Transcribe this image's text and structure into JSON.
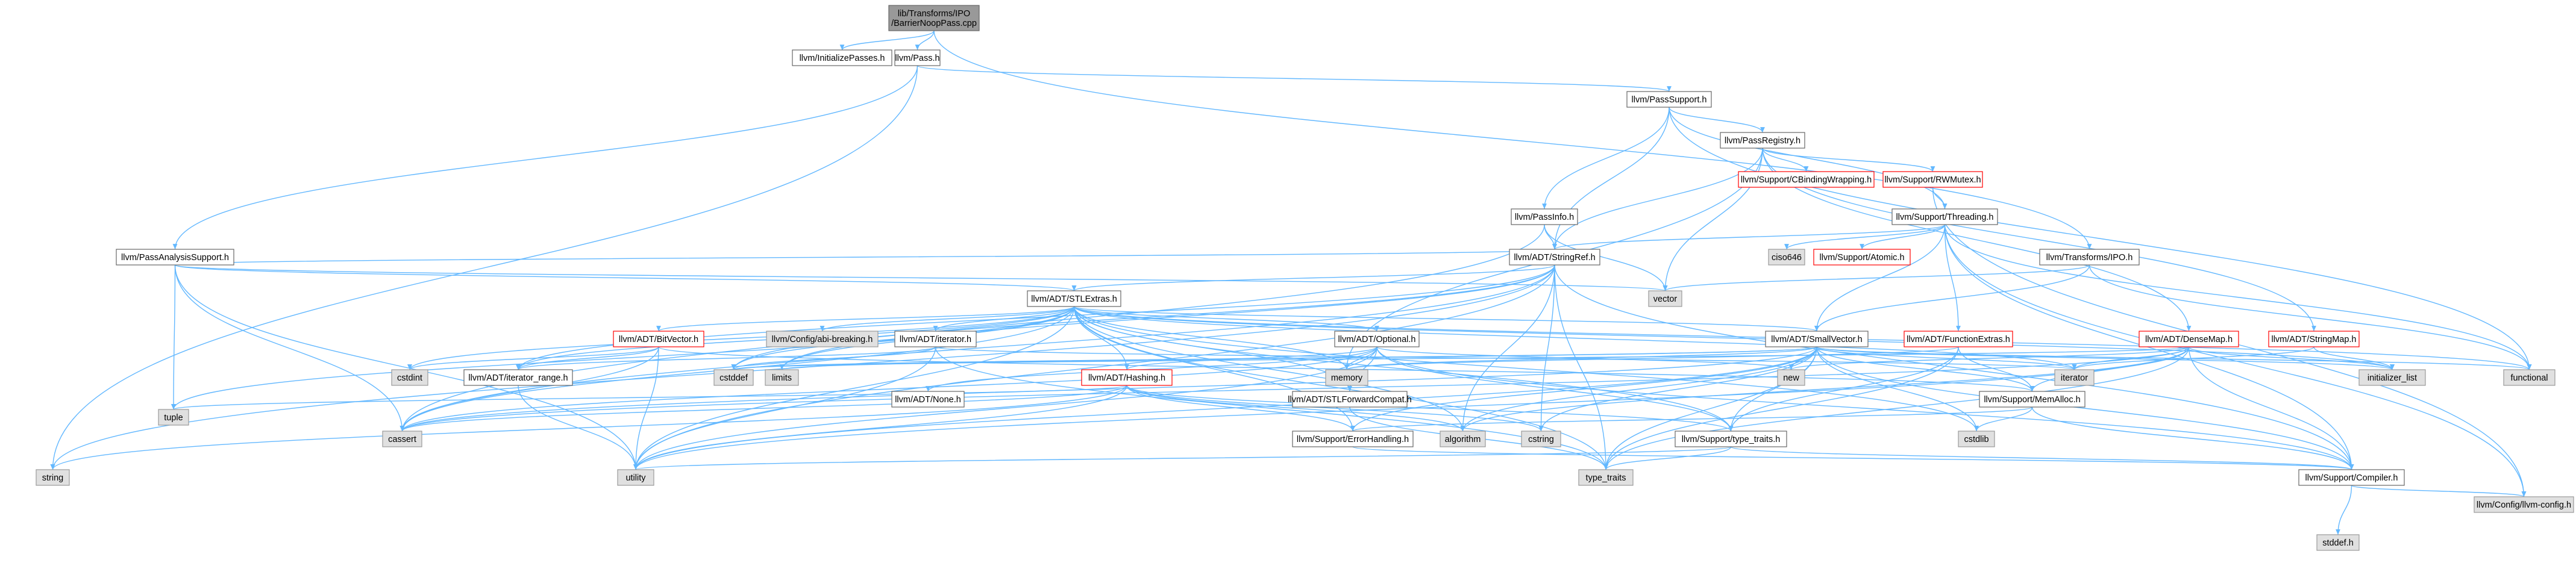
{
  "colors": {
    "edge": "#63b8ff",
    "node_fill": "#ffffff",
    "node_border": "#666666",
    "root_fill": "#999999",
    "root_border": "#666666",
    "missing_fill": "#e0e0e0",
    "missing_border": "#999999",
    "incomplete_border": "#ff0000"
  },
  "nodes": {
    "root": {
      "label": "lib/Transforms/IPO\n/BarrierNoopPass.cpp",
      "kind": "root"
    },
    "initpasses": {
      "label": "llvm/InitializePasses.h",
      "kind": "normal"
    },
    "pass": {
      "label": "llvm/Pass.h",
      "kind": "normal"
    },
    "passsupport": {
      "label": "llvm/PassSupport.h",
      "kind": "normal"
    },
    "passanalysis": {
      "label": "llvm/PassAnalysisSupport.h",
      "kind": "normal"
    },
    "passregistry": {
      "label": "llvm/PassRegistry.h",
      "kind": "normal"
    },
    "passinfo": {
      "label": "llvm/PassInfo.h",
      "kind": "normal"
    },
    "cbinding": {
      "label": "llvm/Support/CBindingWrapping.h",
      "kind": "incomplete"
    },
    "rwmutex": {
      "label": "llvm/Support/RWMutex.h",
      "kind": "incomplete"
    },
    "threading": {
      "label": "llvm/Support/Threading.h",
      "kind": "normal"
    },
    "stringref": {
      "label": "llvm/ADT/StringRef.h",
      "kind": "normal"
    },
    "transformsipo": {
      "label": "llvm/Transforms/IPO.h",
      "kind": "normal"
    },
    "ciso646": {
      "label": "ciso646",
      "kind": "missing"
    },
    "atomic": {
      "label": "llvm/Support/Atomic.h",
      "kind": "incomplete"
    },
    "vector": {
      "label": "vector",
      "kind": "missing"
    },
    "stlextras": {
      "label": "llvm/ADT/STLExtras.h",
      "kind": "normal"
    },
    "abibreaking": {
      "label": "llvm/Config/abi-breaking.h",
      "kind": "missing"
    },
    "bitvector": {
      "label": "llvm/ADT/BitVector.h",
      "kind": "incomplete"
    },
    "adtiterator": {
      "label": "llvm/ADT/iterator.h",
      "kind": "normal"
    },
    "optional": {
      "label": "llvm/ADT/Optional.h",
      "kind": "normal"
    },
    "smallvector": {
      "label": "llvm/ADT/SmallVector.h",
      "kind": "normal"
    },
    "functionextras": {
      "label": "llvm/ADT/FunctionExtras.h",
      "kind": "incomplete"
    },
    "densemap": {
      "label": "llvm/ADT/DenseMap.h",
      "kind": "incomplete"
    },
    "stringmap": {
      "label": "llvm/ADT/StringMap.h",
      "kind": "incomplete"
    },
    "cstdint": {
      "label": "cstdint",
      "kind": "missing"
    },
    "iteratorrange": {
      "label": "llvm/ADT/iterator_range.h",
      "kind": "normal"
    },
    "cstddef": {
      "label": "cstddef",
      "kind": "missing"
    },
    "limits": {
      "label": "limits",
      "kind": "missing"
    },
    "hashing": {
      "label": "llvm/ADT/Hashing.h",
      "kind": "incomplete"
    },
    "none": {
      "label": "llvm/ADT/None.h",
      "kind": "normal"
    },
    "stlforward": {
      "label": "llvm/ADT/STLForwardCompat.h",
      "kind": "normal"
    },
    "memory": {
      "label": "memory",
      "kind": "missing"
    },
    "new": {
      "label": "new",
      "kind": "missing"
    },
    "iterator": {
      "label": "iterator",
      "kind": "missing"
    },
    "initlist": {
      "label": "initializer_list",
      "kind": "missing"
    },
    "functional": {
      "label": "functional",
      "kind": "missing"
    },
    "memalloc": {
      "label": "llvm/Support/MemAlloc.h",
      "kind": "normal"
    },
    "tuple": {
      "label": "tuple",
      "kind": "missing"
    },
    "cassert": {
      "label": "cassert",
      "kind": "missing"
    },
    "errorhandling": {
      "label": "llvm/Support/ErrorHandling.h",
      "kind": "normal"
    },
    "algorithm": {
      "label": "algorithm",
      "kind": "missing"
    },
    "cstring": {
      "label": "cstring",
      "kind": "missing"
    },
    "typetraitsh": {
      "label": "llvm/Support/type_traits.h",
      "kind": "normal"
    },
    "cstdlib": {
      "label": "cstdlib",
      "kind": "missing"
    },
    "string": {
      "label": "string",
      "kind": "missing"
    },
    "utility": {
      "label": "utility",
      "kind": "missing"
    },
    "type_traits": {
      "label": "type_traits",
      "kind": "missing"
    },
    "compiler": {
      "label": "llvm/Support/Compiler.h",
      "kind": "normal"
    },
    "llvmconfig": {
      "label": "llvm/Config/llvm-config.h",
      "kind": "missing"
    },
    "stddef": {
      "label": "stddef.h",
      "kind": "missing"
    }
  },
  "edges": [
    [
      "root",
      "initpasses"
    ],
    [
      "root",
      "pass"
    ],
    [
      "root",
      "transformsipo"
    ],
    [
      "pass",
      "passsupport"
    ],
    [
      "pass",
      "passanalysis"
    ],
    [
      "pass",
      "string"
    ],
    [
      "passsupport",
      "passregistry"
    ],
    [
      "passsupport",
      "passinfo"
    ],
    [
      "passsupport",
      "stringref"
    ],
    [
      "passsupport",
      "threading"
    ],
    [
      "passsupport",
      "functional"
    ],
    [
      "passregistry",
      "cbinding"
    ],
    [
      "passregistry",
      "rwmutex"
    ],
    [
      "passregistry",
      "densemap"
    ],
    [
      "passregistry",
      "stringmap"
    ],
    [
      "passregistry",
      "stringref"
    ],
    [
      "passregistry",
      "memory"
    ],
    [
      "passregistry",
      "vector"
    ],
    [
      "rwmutex",
      "threading"
    ],
    [
      "rwmutex",
      "llvmconfig"
    ],
    [
      "threading",
      "stringref"
    ],
    [
      "threading",
      "ciso646"
    ],
    [
      "threading",
      "atomic"
    ],
    [
      "threading",
      "functionextras"
    ],
    [
      "threading",
      "smallvector"
    ],
    [
      "threading",
      "compiler"
    ],
    [
      "threading",
      "functional"
    ],
    [
      "threading",
      "llvmconfig"
    ],
    [
      "passinfo",
      "stringref"
    ],
    [
      "passinfo",
      "cassert"
    ],
    [
      "passinfo",
      "vector"
    ],
    [
      "passanalysis",
      "stlextras"
    ],
    [
      "passanalysis",
      "stringref"
    ],
    [
      "passanalysis",
      "cassert"
    ],
    [
      "passanalysis",
      "tuple"
    ],
    [
      "passanalysis",
      "utility"
    ],
    [
      "passanalysis",
      "vector"
    ],
    [
      "transformsipo",
      "smallvector"
    ],
    [
      "transformsipo",
      "functional"
    ],
    [
      "transformsipo",
      "vector"
    ],
    [
      "stringref",
      "stlextras"
    ],
    [
      "stringref",
      "iteratorrange"
    ],
    [
      "stringref",
      "compiler"
    ],
    [
      "stringref",
      "algorithm"
    ],
    [
      "stringref",
      "cassert"
    ],
    [
      "stringref",
      "cstddef"
    ],
    [
      "stringref",
      "cstring"
    ],
    [
      "stringref",
      "limits"
    ],
    [
      "stringref",
      "string"
    ],
    [
      "stringref",
      "type_traits"
    ],
    [
      "stringref",
      "utility"
    ],
    [
      "stlextras",
      "abibreaking"
    ],
    [
      "stlextras",
      "bitvector"
    ],
    [
      "stlextras",
      "adtiterator"
    ],
    [
      "stlextras",
      "optional"
    ],
    [
      "stlextras",
      "smallvector"
    ],
    [
      "stlextras",
      "iteratorrange"
    ],
    [
      "stlextras",
      "stlforward"
    ],
    [
      "stlextras",
      "hashing"
    ],
    [
      "stlextras",
      "typetraitsh"
    ],
    [
      "stlextras",
      "errorhandling"
    ],
    [
      "stlextras",
      "algorithm"
    ],
    [
      "stlextras",
      "cassert"
    ],
    [
      "stlextras",
      "cstddef"
    ],
    [
      "stlextras",
      "cstdint"
    ],
    [
      "stlextras",
      "cstdlib"
    ],
    [
      "stlextras",
      "functional"
    ],
    [
      "stlextras",
      "initlist"
    ],
    [
      "stlextras",
      "iterator"
    ],
    [
      "stlextras",
      "limits"
    ],
    [
      "stlextras",
      "memory"
    ],
    [
      "stlextras",
      "tuple"
    ],
    [
      "stlextras",
      "type_traits"
    ],
    [
      "stlextras",
      "utility"
    ],
    [
      "bitvector",
      "iteratorrange"
    ],
    [
      "bitvector",
      "memalloc"
    ],
    [
      "bitvector",
      "cassert"
    ],
    [
      "bitvector",
      "utility"
    ],
    [
      "bitvector",
      "cstdint"
    ],
    [
      "adtiterator",
      "iteratorrange"
    ],
    [
      "adtiterator",
      "cstddef"
    ],
    [
      "adtiterator",
      "iterator"
    ],
    [
      "adtiterator",
      "type_traits"
    ],
    [
      "adtiterator",
      "utility"
    ],
    [
      "optional",
      "hashing"
    ],
    [
      "optional",
      "none"
    ],
    [
      "optional",
      "stlforward"
    ],
    [
      "optional",
      "compiler"
    ],
    [
      "optional",
      "typetraitsh"
    ],
    [
      "optional",
      "cassert"
    ],
    [
      "optional",
      "memory"
    ],
    [
      "optional",
      "new"
    ],
    [
      "optional",
      "utility"
    ],
    [
      "smallvector",
      "compiler"
    ],
    [
      "smallvector",
      "memalloc"
    ],
    [
      "smallvector",
      "typetraitsh"
    ],
    [
      "smallvector",
      "errorhandling"
    ],
    [
      "smallvector",
      "algorithm"
    ],
    [
      "smallvector",
      "cassert"
    ],
    [
      "smallvector",
      "cstddef"
    ],
    [
      "smallvector",
      "cstdlib"
    ],
    [
      "smallvector",
      "cstring"
    ],
    [
      "smallvector",
      "functional"
    ],
    [
      "smallvector",
      "initlist"
    ],
    [
      "smallvector",
      "iterator"
    ],
    [
      "smallvector",
      "limits"
    ],
    [
      "smallvector",
      "memory"
    ],
    [
      "smallvector",
      "new"
    ],
    [
      "smallvector",
      "type_traits"
    ],
    [
      "smallvector",
      "utility"
    ],
    [
      "functionextras",
      "memalloc"
    ],
    [
      "functionextras",
      "typetraitsh"
    ],
    [
      "functionextras",
      "memory"
    ],
    [
      "functionextras",
      "type_traits"
    ],
    [
      "densemap",
      "memalloc"
    ],
    [
      "densemap",
      "compiler"
    ],
    [
      "densemap",
      "algorithm"
    ],
    [
      "densemap",
      "cassert"
    ],
    [
      "densemap",
      "cstddef"
    ],
    [
      "densemap",
      "initlist"
    ],
    [
      "densemap",
      "iterator"
    ],
    [
      "densemap",
      "new"
    ],
    [
      "densemap",
      "type_traits"
    ],
    [
      "densemap",
      "utility"
    ],
    [
      "stringmap",
      "iterator"
    ],
    [
      "stringmap",
      "initlist"
    ],
    [
      "iteratorrange",
      "utility"
    ],
    [
      "hashing",
      "errorhandling"
    ],
    [
      "hashing",
      "typetraitsh"
    ],
    [
      "hashing",
      "algorithm"
    ],
    [
      "hashing",
      "cassert"
    ],
    [
      "hashing",
      "cstring"
    ],
    [
      "hashing",
      "string"
    ],
    [
      "hashing",
      "tuple"
    ],
    [
      "hashing",
      "utility"
    ],
    [
      "stlforward",
      "type_traits"
    ],
    [
      "memalloc",
      "compiler"
    ],
    [
      "memalloc",
      "errorhandling"
    ],
    [
      "memalloc",
      "cstdlib"
    ],
    [
      "errorhandling",
      "compiler"
    ],
    [
      "typetraitsh",
      "compiler"
    ],
    [
      "typetraitsh",
      "type_traits"
    ],
    [
      "typetraitsh",
      "utility"
    ],
    [
      "compiler",
      "llvmconfig"
    ],
    [
      "compiler",
      "stddef"
    ]
  ]
}
